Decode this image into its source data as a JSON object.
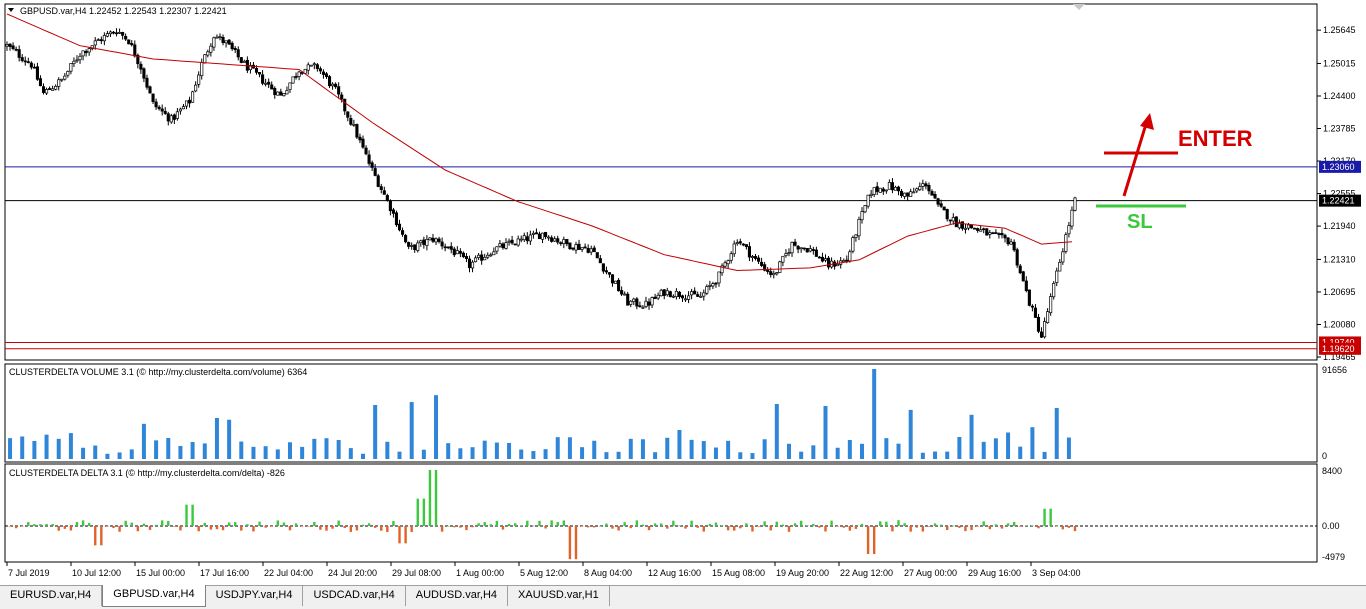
{
  "main": {
    "title": "GBPUSD.var,H4  1.22452 1.22543 1.22307 1.22421",
    "price_ticks": [
      "1.25645",
      "1.25015",
      "1.24400",
      "1.23785",
      "1.23170",
      "1.22555",
      "1.21940",
      "1.21310",
      "1.20695",
      "1.20080",
      "1.19465"
    ],
    "hlines": [
      {
        "value": 1.2306,
        "label": "1.23060",
        "color": "#1a1aa8"
      },
      {
        "value": 1.22421,
        "label": "1.22421",
        "color": "#000000"
      },
      {
        "value": 1.1974,
        "label": "1.19740",
        "color": "#c80000"
      },
      {
        "value": 1.1962,
        "label": "1.19620",
        "color": "#c80000"
      }
    ],
    "annotations": {
      "enter": "ENTER",
      "sl": "SL",
      "enter_color": "#d40000",
      "sl_color": "#3cc83c"
    }
  },
  "volume": {
    "title": "CLUSTERDELTA VOLUME 3.1 (© http://my.clusterdelta.com/volume) 6364",
    "ticks": [
      "91656",
      "0"
    ],
    "color": "#2f86d8"
  },
  "delta": {
    "title": "CLUSTERDELTA DELTA 3.1 (© http://my.clusterdelta.com/delta) -826",
    "ticks": [
      "8400",
      "0.00",
      "-4979"
    ],
    "pos_color": "#3cc83c",
    "neg_color": "#e0622a"
  },
  "xaxis": {
    "labels": [
      "7 Jul 2019",
      "10 Jul 12:00",
      "15 Jul 00:00",
      "17 Jul 16:00",
      "22 Jul 04:00",
      "24 Jul 20:00",
      "29 Jul 08:00",
      "1 Aug 00:00",
      "5 Aug 12:00",
      "8 Aug 04:00",
      "12 Aug 16:00",
      "15 Aug 08:00",
      "19 Aug 20:00",
      "22 Aug 12:00",
      "27 Aug 00:00",
      "29 Aug 16:00",
      "3 Sep 04:00"
    ]
  },
  "tabs": [
    "EURUSD.var,H4",
    "GBPUSD.var,H4",
    "USDJPY.var,H4",
    "USDCAD.var,H4",
    "AUDUSD.var,H4",
    "XAUUSD.var,H1"
  ],
  "active_tab": 1,
  "chart_data": {
    "type": "candlestick",
    "symbol": "GBPUSD.var",
    "timeframe": "H4",
    "ylim": [
      1.19465,
      1.2595
    ],
    "close_anchors": [
      [
        0,
        1.2535
      ],
      [
        8,
        1.25
      ],
      [
        12,
        1.2445
      ],
      [
        18,
        1.247
      ],
      [
        24,
        1.252
      ],
      [
        30,
        1.2545
      ],
      [
        36,
        1.2565
      ],
      [
        40,
        1.2545
      ],
      [
        44,
        1.2495
      ],
      [
        48,
        1.2425
      ],
      [
        54,
        1.2395
      ],
      [
        60,
        1.243
      ],
      [
        64,
        1.25
      ],
      [
        68,
        1.2555
      ],
      [
        72,
        1.254
      ],
      [
        78,
        1.25
      ],
      [
        84,
        1.247
      ],
      [
        90,
        1.244
      ],
      [
        96,
        1.249
      ],
      [
        102,
        1.2495
      ],
      [
        108,
        1.245
      ],
      [
        114,
        1.238
      ],
      [
        120,
        1.23
      ],
      [
        126,
        1.223
      ],
      [
        132,
        1.215
      ],
      [
        140,
        1.217
      ],
      [
        146,
        1.215
      ],
      [
        152,
        1.212
      ],
      [
        160,
        1.215
      ],
      [
        168,
        1.2165
      ],
      [
        176,
        1.218
      ],
      [
        184,
        1.216
      ],
      [
        192,
        1.215
      ],
      [
        198,
        1.21
      ],
      [
        204,
        1.205
      ],
      [
        210,
        1.2045
      ],
      [
        216,
        1.207
      ],
      [
        222,
        1.2065
      ],
      [
        228,
        1.206
      ],
      [
        234,
        1.21
      ],
      [
        240,
        1.217
      ],
      [
        246,
        1.213
      ],
      [
        252,
        1.21
      ],
      [
        258,
        1.216
      ],
      [
        264,
        1.215
      ],
      [
        270,
        1.212
      ],
      [
        276,
        1.213
      ],
      [
        280,
        1.22
      ],
      [
        284,
        1.226
      ],
      [
        290,
        1.227
      ],
      [
        296,
        1.225
      ],
      [
        302,
        1.2275
      ],
      [
        306,
        1.223
      ],
      [
        312,
        1.22
      ],
      [
        318,
        1.219
      ],
      [
        324,
        1.2175
      ],
      [
        330,
        1.2165
      ],
      [
        336,
        1.205
      ],
      [
        340,
        1.1985
      ],
      [
        344,
        1.208
      ],
      [
        348,
        1.2175
      ],
      [
        351,
        1.2242
      ]
    ],
    "sma_anchors": [
      [
        0,
        1.2595
      ],
      [
        24,
        1.2535
      ],
      [
        48,
        1.251
      ],
      [
        72,
        1.25
      ],
      [
        96,
        1.249
      ],
      [
        120,
        1.239
      ],
      [
        144,
        1.23
      ],
      [
        168,
        1.224
      ],
      [
        192,
        1.2195
      ],
      [
        216,
        1.214
      ],
      [
        240,
        1.211
      ],
      [
        264,
        1.2115
      ],
      [
        280,
        1.213
      ],
      [
        296,
        1.2175
      ],
      [
        312,
        1.22
      ],
      [
        328,
        1.219
      ],
      [
        340,
        1.216
      ],
      [
        351,
        1.2165
      ]
    ],
    "volume_peaks": [
      [
        72,
        40000
      ],
      [
        120,
        55000
      ],
      [
        132,
        58000
      ],
      [
        140,
        65000
      ],
      [
        252,
        56000
      ],
      [
        268,
        54000
      ],
      [
        284,
        91656
      ],
      [
        298,
        50000
      ],
      [
        318,
        45000
      ],
      [
        344,
        52000
      ]
    ],
    "delta_peaks": [
      [
        140,
        8400
      ],
      [
        136,
        4100
      ],
      [
        60,
        3200
      ],
      [
        186,
        -4979
      ],
      [
        284,
        -4200
      ],
      [
        130,
        -2600
      ],
      [
        30,
        -2900
      ],
      [
        342,
        2600
      ]
    ]
  }
}
